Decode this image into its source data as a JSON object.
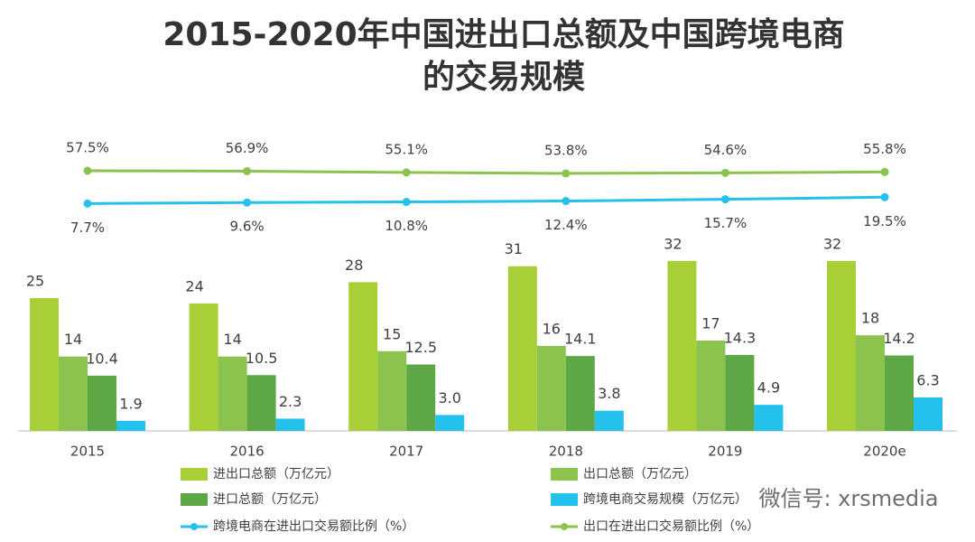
{
  "chart_data": {
    "type": "bar",
    "title": [
      "2015-2020年中国进出口总额及中国跨境电商",
      "的交易规模"
    ],
    "categories": [
      "2015",
      "2016",
      "2017",
      "2018",
      "2019",
      "2020e"
    ],
    "series": [
      {
        "name": "进出口总额（万亿元）",
        "type": "bar",
        "color": "#a9cf38",
        "values": [
          25,
          24,
          28,
          31,
          32,
          32
        ]
      },
      {
        "name": "出口总额（万亿元）",
        "type": "bar",
        "color": "#8cc34f",
        "values": [
          14,
          14,
          15,
          16,
          17,
          18
        ]
      },
      {
        "name": "进口总额（万亿元）",
        "type": "bar",
        "color": "#5ea746",
        "values": [
          10.4,
          10.5,
          12.5,
          14.1,
          14.3,
          14.2
        ]
      },
      {
        "name": "跨境电商交易规模（万亿元）",
        "type": "bar",
        "color": "#23c1ec",
        "values": [
          1.9,
          2.3,
          3.0,
          3.8,
          4.9,
          6.3
        ],
        "value_labels": [
          "1.9",
          "2.3",
          "3.0",
          "3.8",
          "4.9",
          "6.3"
        ]
      },
      {
        "name": "跨境电商在进出口交易额比例（%）",
        "type": "line",
        "color": "#23c1ec",
        "values": [
          7.7,
          9.6,
          10.8,
          12.4,
          15.7,
          19.5
        ],
        "value_labels": [
          "7.7%",
          "9.6%",
          "10.8%",
          "12.4%",
          "15.7%",
          "19.5%"
        ]
      },
      {
        "name": "出口在进出口交易额比例（%）",
        "type": "line",
        "color": "#8cc34f",
        "values": [
          57.5,
          56.9,
          55.1,
          53.8,
          54.6,
          55.8
        ],
        "value_labels": [
          "57.5%",
          "56.9%",
          "55.1%",
          "53.8%",
          "54.6%",
          "55.8%"
        ]
      }
    ],
    "watermark": "微信号: xrsmedia"
  }
}
